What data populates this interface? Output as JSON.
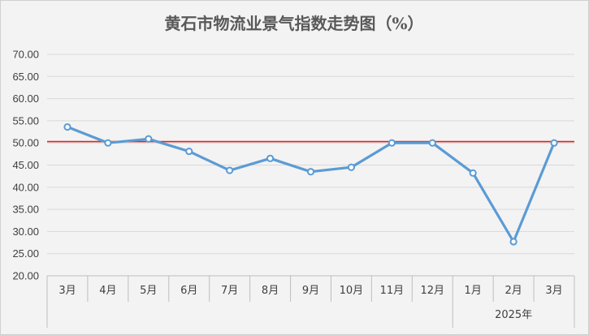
{
  "chart_data": {
    "type": "line",
    "title": "黄石市物流业景气指数走势图（%）",
    "categories": [
      "3月",
      "4月",
      "5月",
      "6月",
      "7月",
      "8月",
      "9月",
      "10月",
      "11月",
      "12月",
      "1月",
      "2月",
      "3月"
    ],
    "group_label": "2025年",
    "values": [
      53.6,
      50.0,
      50.9,
      48.1,
      43.8,
      46.5,
      43.5,
      44.5,
      50.0,
      50.0,
      43.2,
      27.7,
      50.0
    ],
    "reference_line": 50.3,
    "ylim": [
      20,
      70
    ],
    "yticks": [
      "20.00",
      "25.00",
      "30.00",
      "35.00",
      "40.00",
      "45.00",
      "50.00",
      "55.00",
      "60.00",
      "65.00",
      "70.00"
    ],
    "grid": true,
    "colors": {
      "line": "#5b9bd5",
      "reference": "#e02020",
      "grid": "#d9d9d9",
      "marker_fill": "#ffffff"
    }
  }
}
